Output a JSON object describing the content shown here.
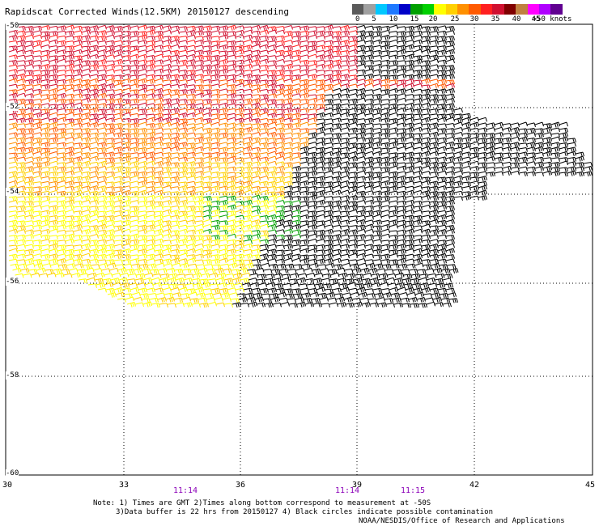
{
  "title": "Rapidscat Corrected Winds(12.5KM) 20150127 descending",
  "legend": {
    "labels": [
      "0",
      "5",
      "10",
      "15",
      "20",
      "25",
      "30",
      "35",
      "40",
      "45",
      ">50 knots"
    ],
    "colors": [
      "#5a5a5a",
      "#a0a0a0",
      "#00c8ff",
      "#1e78ff",
      "#0000c8",
      "#00a000",
      "#00d000",
      "#ffff00",
      "#ffd000",
      "#ff9000",
      "#ff5a00",
      "#ff2020",
      "#d01030",
      "#800000",
      "#c08040",
      "#ff00ff",
      "#b000ff",
      "#600090"
    ]
  },
  "map": {
    "lat_labels": [
      "-50",
      "-52",
      "-54",
      "-56",
      "-58",
      "-60"
    ],
    "lon_labels": [
      "30",
      "33",
      "36",
      "39",
      "42",
      "45"
    ],
    "time_labels": [
      "11:14",
      "11:14",
      "11:15"
    ]
  },
  "notes": {
    "line1": "Note: 1) Times are GMT 2)Times along bottom correspond to measurement at -50S",
    "line2": "3)Data buffer is 22 hrs from 20150127 4) Black circles indicate possible contamination",
    "line3": "NOAA/NESDIS/Office of Research and Applications"
  }
}
